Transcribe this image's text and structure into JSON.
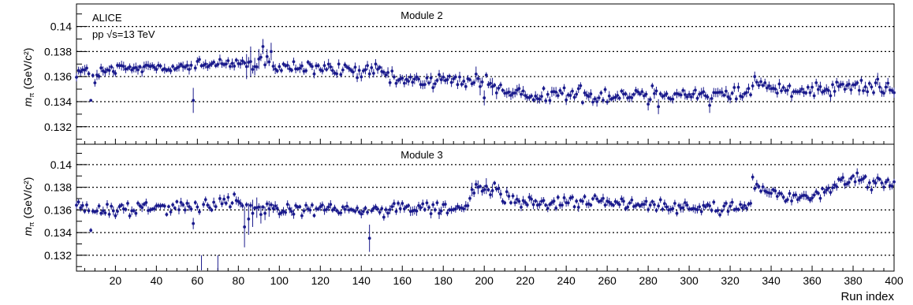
{
  "chart_data": [
    {
      "type": "scatter",
      "panel": "top",
      "title": "Module 2",
      "annotations": [
        "ALICE",
        "pp √s=13 TeV"
      ],
      "ylabel": "m_π (GeV/c²)",
      "ylabel_main": "m",
      "ylabel_sub": "π",
      "ylabel_units": "(GeV/c²)",
      "xlim": [
        1,
        400
      ],
      "ylim": [
        0.1306,
        0.1418
      ],
      "yticks": [
        0.132,
        0.134,
        0.136,
        0.138,
        0.14
      ],
      "ytick_labels": [
        "0.132",
        "0.134",
        "0.136",
        "0.138",
        "0.14"
      ],
      "grid": "horizontal-dotted",
      "color": "#1a1a8c",
      "baseline": [
        [
          1,
          0.1365
        ],
        [
          10,
          0.1362
        ],
        [
          20,
          0.1365
        ],
        [
          40,
          0.1368
        ],
        [
          60,
          0.1368
        ],
        [
          75,
          0.1372
        ],
        [
          85,
          0.137
        ],
        [
          95,
          0.1367
        ],
        [
          110,
          0.1367
        ],
        [
          130,
          0.1365
        ],
        [
          150,
          0.1364
        ],
        [
          155,
          0.1357
        ],
        [
          170,
          0.1357
        ],
        [
          185,
          0.1357
        ],
        [
          195,
          0.1357
        ],
        [
          205,
          0.1355
        ],
        [
          210,
          0.1346
        ],
        [
          240,
          0.1346
        ],
        [
          260,
          0.1345
        ],
        [
          280,
          0.1347
        ],
        [
          300,
          0.1346
        ],
        [
          320,
          0.1346
        ],
        [
          330,
          0.1348
        ],
        [
          332,
          0.1357
        ],
        [
          340,
          0.135
        ],
        [
          360,
          0.135
        ],
        [
          375,
          0.1353
        ],
        [
          400,
          0.135
        ]
      ],
      "noise": 0.0003,
      "error_typical": 0.0003,
      "special_points": [
        {
          "x": 8,
          "y": 0.1341,
          "err": 0.0001
        },
        {
          "x": 10,
          "y": 0.1355,
          "err": 0.0003
        },
        {
          "x": 58,
          "y": 0.1341,
          "err": 0.001
        },
        {
          "x": 84,
          "y": 0.1368,
          "err": 0.001
        },
        {
          "x": 86,
          "y": 0.1372,
          "err": 0.0012
        },
        {
          "x": 88,
          "y": 0.1368,
          "err": 0.0007
        },
        {
          "x": 90,
          "y": 0.1374,
          "err": 0.0008
        },
        {
          "x": 92,
          "y": 0.1384,
          "err": 0.0006
        },
        {
          "x": 94,
          "y": 0.1376,
          "err": 0.0006
        },
        {
          "x": 96,
          "y": 0.138,
          "err": 0.0007
        },
        {
          "x": 98,
          "y": 0.1366,
          "err": 0.0004
        },
        {
          "x": 196,
          "y": 0.1362,
          "err": 0.0006
        },
        {
          "x": 198,
          "y": 0.1352,
          "err": 0.0007
        },
        {
          "x": 200,
          "y": 0.1343,
          "err": 0.0006
        },
        {
          "x": 204,
          "y": 0.1352,
          "err": 0.0007
        },
        {
          "x": 206,
          "y": 0.1347,
          "err": 0.0005
        },
        {
          "x": 255,
          "y": 0.134,
          "err": 0.0004
        },
        {
          "x": 280,
          "y": 0.1338,
          "err": 0.0005
        },
        {
          "x": 285,
          "y": 0.1336,
          "err": 0.0006
        },
        {
          "x": 310,
          "y": 0.1337,
          "err": 0.0006
        },
        {
          "x": 332,
          "y": 0.136,
          "err": 0.0004
        },
        {
          "x": 392,
          "y": 0.1358,
          "err": 0.0005
        }
      ]
    },
    {
      "type": "scatter",
      "panel": "bottom",
      "title": "Module 3",
      "ylabel": "m_π (GeV/c²)",
      "ylabel_main": "m",
      "ylabel_sub": "π",
      "ylabel_units": "(GeV/c²)",
      "xlabel": "Run index",
      "xlim": [
        1,
        400
      ],
      "ylim": [
        0.1306,
        0.1418
      ],
      "xticks": [
        20,
        40,
        60,
        80,
        100,
        120,
        140,
        160,
        180,
        200,
        220,
        240,
        260,
        280,
        300,
        320,
        340,
        360,
        380,
        400
      ],
      "xtick_labels": [
        "20",
        "40",
        "60",
        "80",
        "100",
        "120",
        "140",
        "160",
        "180",
        "200",
        "220",
        "240",
        "260",
        "280",
        "300",
        "320",
        "340",
        "360",
        "380",
        "400"
      ],
      "yticks": [
        0.132,
        0.134,
        0.136,
        0.138,
        0.14
      ],
      "ytick_labels": [
        "0.132",
        "0.134",
        "0.136",
        "0.138",
        "0.14"
      ],
      "grid": "horizontal-dotted",
      "color": "#1a1a8c",
      "baseline": [
        [
          1,
          0.1365
        ],
        [
          6,
          0.1362
        ],
        [
          10,
          0.1357
        ],
        [
          30,
          0.1362
        ],
        [
          50,
          0.1364
        ],
        [
          70,
          0.1365
        ],
        [
          80,
          0.1368
        ],
        [
          85,
          0.1364
        ],
        [
          100,
          0.136
        ],
        [
          120,
          0.136
        ],
        [
          150,
          0.1359
        ],
        [
          170,
          0.1362
        ],
        [
          185,
          0.1362
        ],
        [
          192,
          0.1362
        ],
        [
          194,
          0.1378
        ],
        [
          205,
          0.1378
        ],
        [
          210,
          0.137
        ],
        [
          230,
          0.1365
        ],
        [
          250,
          0.1368
        ],
        [
          270,
          0.1365
        ],
        [
          290,
          0.1363
        ],
        [
          310,
          0.1363
        ],
        [
          330,
          0.1362
        ],
        [
          331,
          0.1381
        ],
        [
          340,
          0.1375
        ],
        [
          350,
          0.1371
        ],
        [
          365,
          0.1374
        ],
        [
          372,
          0.1384
        ],
        [
          380,
          0.1388
        ],
        [
          400,
          0.1383
        ]
      ],
      "noise": 0.0003,
      "error_typical": 0.0003,
      "special_points": [
        {
          "x": 8,
          "y": 0.1342,
          "err": 0.0002
        },
        {
          "x": 58,
          "y": 0.1348,
          "err": 0.0005
        },
        {
          "x": 62,
          "y": 0.1305,
          "err": 0.0015
        },
        {
          "x": 70,
          "y": 0.1305,
          "err": 0.0015
        },
        {
          "x": 83,
          "y": 0.1345,
          "err": 0.0018
        },
        {
          "x": 85,
          "y": 0.1352,
          "err": 0.0014
        },
        {
          "x": 87,
          "y": 0.1357,
          "err": 0.0012
        },
        {
          "x": 89,
          "y": 0.1362,
          "err": 0.0009
        },
        {
          "x": 91,
          "y": 0.1356,
          "err": 0.0008
        },
        {
          "x": 93,
          "y": 0.1357,
          "err": 0.0006
        },
        {
          "x": 95,
          "y": 0.1361,
          "err": 0.0007
        },
        {
          "x": 144,
          "y": 0.1335,
          "err": 0.0012
        },
        {
          "x": 178,
          "y": 0.1357,
          "err": 0.0005
        },
        {
          "x": 194,
          "y": 0.1378,
          "err": 0.0006
        },
        {
          "x": 197,
          "y": 0.138,
          "err": 0.0006
        },
        {
          "x": 201,
          "y": 0.1381,
          "err": 0.0007
        },
        {
          "x": 204,
          "y": 0.1377,
          "err": 0.0006
        },
        {
          "x": 331,
          "y": 0.1389,
          "err": 0.0003
        }
      ]
    }
  ]
}
